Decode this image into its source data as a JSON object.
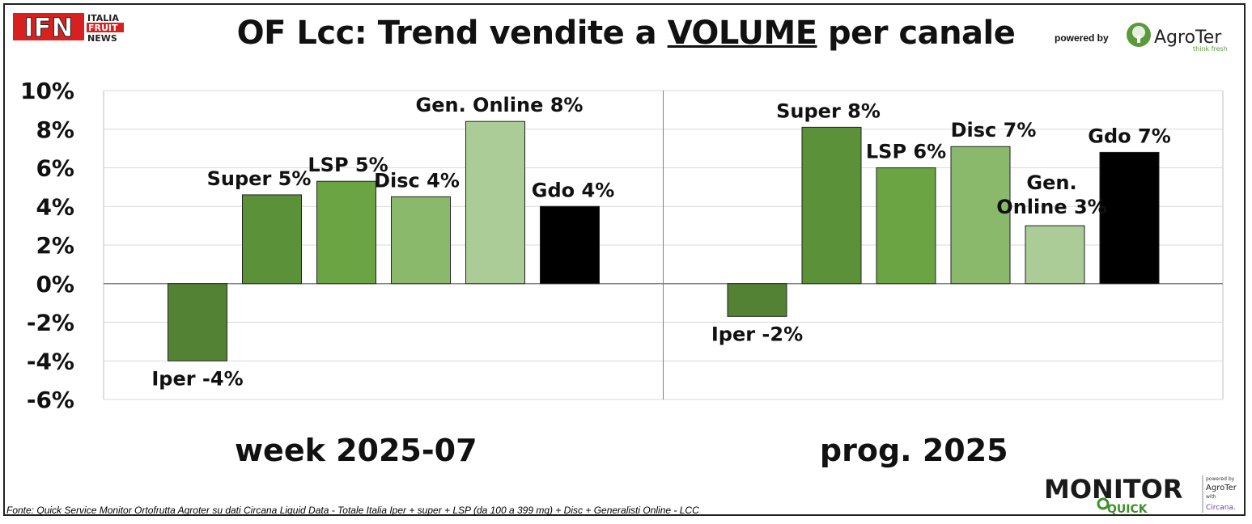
{
  "title_pre": "OF Lcc: Trend vendite a ",
  "title_underlined": "VOLUME",
  "title_post": " per canale",
  "logo_ifn": {
    "main": "IFN",
    "line1": "ITALIA",
    "line2": "FRUIT",
    "line3": "NEWS"
  },
  "powered_by": "powered by",
  "agroter": {
    "name": "AgroTer",
    "tagline": "think fresh"
  },
  "footer": "Fonte: Quick Service Monitor Ortofrutta Agroter su dati Circana Liquid Data - Totale Italia Iper + super + LSP (da 100 a 399 mq) + Disc + Generalisti Online - LCC",
  "monitor_logo": {
    "main": "MONITOR",
    "sub": "QUICK",
    "powered": "powered by",
    "brand": "AgroTer",
    "with": "with",
    "partner": "Circana."
  },
  "colors": {
    "iper": "#548235",
    "super": "#5b9138",
    "lsp": "#6aa443",
    "disc": "#8ab96c",
    "online": "#abcb97",
    "gdo": "#000000"
  },
  "chart_data": {
    "type": "bar",
    "ylim": [
      -6,
      10
    ],
    "yticks": [
      "10%",
      "8%",
      "6%",
      "4%",
      "2%",
      "0%",
      "-2%",
      "-4%",
      "-6%"
    ],
    "grid": true,
    "panels": [
      {
        "label": "week 2025-07",
        "bars": [
          {
            "category": "Iper",
            "value": -4.0,
            "label": "Iper -4%",
            "color_key": "iper"
          },
          {
            "category": "Super",
            "value": 4.6,
            "label": "Super 5%",
            "color_key": "super"
          },
          {
            "category": "LSP",
            "value": 5.3,
            "label": "LSP 5%",
            "color_key": "lsp"
          },
          {
            "category": "Disc",
            "value": 4.5,
            "label": "Disc 4%",
            "color_key": "disc"
          },
          {
            "category": "Gen. Online",
            "value": 8.4,
            "label": "Gen. Online 8%",
            "color_key": "online"
          },
          {
            "category": "Gdo",
            "value": 4.0,
            "label": "Gdo 4%",
            "color_key": "gdo"
          }
        ]
      },
      {
        "label": "prog. 2025",
        "bars": [
          {
            "category": "Iper",
            "value": -1.7,
            "label": "Iper -2%",
            "color_key": "iper"
          },
          {
            "category": "Super",
            "value": 8.1,
            "label": "Super 8%",
            "color_key": "super"
          },
          {
            "category": "LSP",
            "value": 6.0,
            "label": "LSP 6%",
            "color_key": "lsp"
          },
          {
            "category": "Disc",
            "value": 7.1,
            "label": "Disc 7%",
            "color_key": "disc"
          },
          {
            "category": "Gen. Online",
            "value": 3.0,
            "label": "Gen. Online 3%",
            "label_lines": [
              "Gen.",
              "Online 3%"
            ],
            "color_key": "online"
          },
          {
            "category": "Gdo",
            "value": 6.8,
            "label": "Gdo 7%",
            "color_key": "gdo"
          }
        ]
      }
    ]
  }
}
